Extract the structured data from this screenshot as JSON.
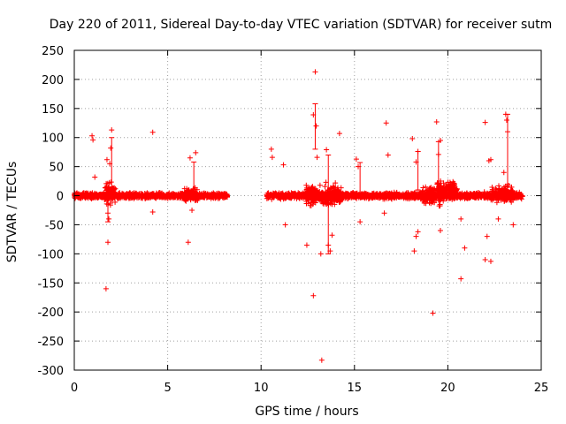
{
  "chart_data": {
    "type": "scatter",
    "title": "Day 220 of 2011, Sidereal Day-to-day VTEC variation (SDTVAR) for receiver sutm",
    "xlabel": "GPS time / hours",
    "ylabel": "SDTVAR / TECUs",
    "xlim": [
      0,
      25
    ],
    "ylim": [
      -300,
      250
    ],
    "xticks": [
      0,
      5,
      10,
      15,
      20,
      25
    ],
    "yticks": [
      -300,
      -250,
      -200,
      -150,
      -100,
      -50,
      0,
      50,
      100,
      150,
      200,
      250
    ],
    "grid": true,
    "marker": "+",
    "color": "#ff0000",
    "series": [
      {
        "name": "SDTVAR",
        "dense_bands": [
          {
            "x": [
              0.0,
              8.2
            ],
            "y": [
              -6,
              6
            ]
          },
          {
            "x": [
              1.6,
              2.2
            ],
            "y": [
              -20,
              30
            ]
          },
          {
            "x": [
              5.9,
              6.6
            ],
            "y": [
              -15,
              20
            ]
          },
          {
            "x": [
              10.3,
              24.0
            ],
            "y": [
              -7,
              7
            ]
          },
          {
            "x": [
              12.4,
              14.3
            ],
            "y": [
              -25,
              25
            ]
          },
          {
            "x": [
              18.6,
              19.6
            ],
            "y": [
              -20,
              20
            ]
          },
          {
            "x": [
              19.4,
              20.5
            ],
            "y": [
              -10,
              30
            ]
          },
          {
            "x": [
              22.3,
              23.5
            ],
            "y": [
              -15,
              20
            ]
          }
        ],
        "points": [
          {
            "x": 0.95,
            "y": 103
          },
          {
            "x": 1.0,
            "y": 96
          },
          {
            "x": 1.1,
            "y": 32
          },
          {
            "x": 1.75,
            "y": 62
          },
          {
            "x": 1.8,
            "y": -30
          },
          {
            "x": 1.85,
            "y": -40
          },
          {
            "x": 1.7,
            "y": -160
          },
          {
            "x": 1.8,
            "y": -80
          },
          {
            "x": 1.95,
            "y": 82
          },
          {
            "x": 2.0,
            "y": 113
          },
          {
            "x": 1.9,
            "y": 55
          },
          {
            "x": 4.2,
            "y": 109
          },
          {
            "x": 4.2,
            "y": -28
          },
          {
            "x": 6.1,
            "y": -80
          },
          {
            "x": 6.2,
            "y": 65
          },
          {
            "x": 6.5,
            "y": 74
          },
          {
            "x": 6.3,
            "y": -25
          },
          {
            "x": 10.55,
            "y": 80
          },
          {
            "x": 10.6,
            "y": 66
          },
          {
            "x": 11.2,
            "y": 53
          },
          {
            "x": 11.3,
            "y": -50
          },
          {
            "x": 12.45,
            "y": -85
          },
          {
            "x": 12.9,
            "y": 213
          },
          {
            "x": 12.8,
            "y": 139
          },
          {
            "x": 12.95,
            "y": 120
          },
          {
            "x": 12.8,
            "y": -172
          },
          {
            "x": 13.0,
            "y": 66
          },
          {
            "x": 13.2,
            "y": -100
          },
          {
            "x": 13.25,
            "y": -283
          },
          {
            "x": 13.5,
            "y": 79
          },
          {
            "x": 13.6,
            "y": -85
          },
          {
            "x": 13.7,
            "y": -95
          },
          {
            "x": 13.8,
            "y": -68
          },
          {
            "x": 14.2,
            "y": 107
          },
          {
            "x": 15.1,
            "y": 63
          },
          {
            "x": 15.3,
            "y": -45
          },
          {
            "x": 15.2,
            "y": 50
          },
          {
            "x": 16.7,
            "y": 125
          },
          {
            "x": 16.8,
            "y": 70
          },
          {
            "x": 16.6,
            "y": -30
          },
          {
            "x": 18.1,
            "y": 98
          },
          {
            "x": 18.3,
            "y": 58
          },
          {
            "x": 18.4,
            "y": 76
          },
          {
            "x": 18.2,
            "y": -95
          },
          {
            "x": 18.3,
            "y": -70
          },
          {
            "x": 18.4,
            "y": -62
          },
          {
            "x": 19.2,
            "y": -202
          },
          {
            "x": 19.4,
            "y": 127
          },
          {
            "x": 19.6,
            "y": 95
          },
          {
            "x": 19.5,
            "y": 71
          },
          {
            "x": 19.6,
            "y": -60
          },
          {
            "x": 20.7,
            "y": -143
          },
          {
            "x": 20.9,
            "y": -90
          },
          {
            "x": 20.7,
            "y": -40
          },
          {
            "x": 22.0,
            "y": 126
          },
          {
            "x": 22.0,
            "y": -110
          },
          {
            "x": 22.3,
            "y": -113
          },
          {
            "x": 22.1,
            "y": -70
          },
          {
            "x": 22.2,
            "y": 60
          },
          {
            "x": 22.3,
            "y": 62
          },
          {
            "x": 23.1,
            "y": 140
          },
          {
            "x": 23.15,
            "y": 130
          },
          {
            "x": 23.2,
            "y": 110
          },
          {
            "x": 23.0,
            "y": 40
          },
          {
            "x": 23.5,
            "y": -50
          },
          {
            "x": 22.7,
            "y": -40
          }
        ],
        "error_bars": [
          {
            "x": 2.0,
            "y": 60,
            "lo": 15,
            "hi": 100
          },
          {
            "x": 6.4,
            "y": 40,
            "lo": 10,
            "hi": 58
          },
          {
            "x": 12.9,
            "y": 140,
            "lo": 80,
            "hi": 158
          },
          {
            "x": 13.6,
            "y": 40,
            "lo": -100,
            "hi": 70
          },
          {
            "x": 15.3,
            "y": 30,
            "lo": 5,
            "hi": 57
          },
          {
            "x": 19.5,
            "y": 70,
            "lo": 20,
            "hi": 93
          },
          {
            "x": 23.2,
            "y": 105,
            "lo": 20,
            "hi": 140
          },
          {
            "x": 18.4,
            "y": 50,
            "lo": 10,
            "hi": 76
          },
          {
            "x": 1.8,
            "y": -20,
            "lo": -45,
            "hi": 10
          }
        ]
      }
    ]
  }
}
